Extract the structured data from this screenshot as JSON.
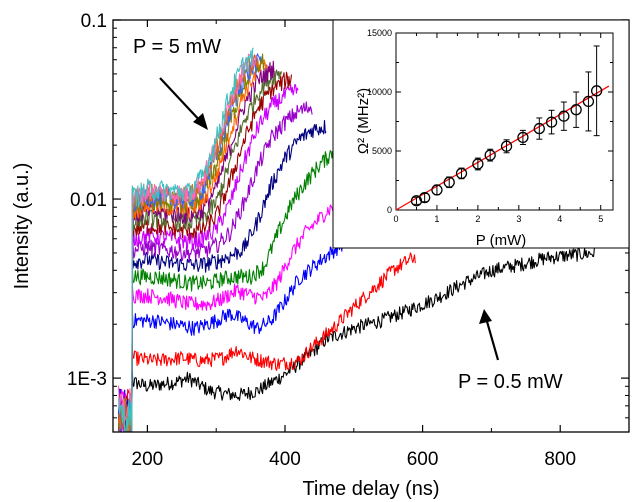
{
  "main_chart": {
    "xlabel": "Time delay (ns)",
    "ylabel": "Intensity (a.u.)",
    "xlim": [
      150,
      900
    ],
    "ylim": [
      0.0005,
      0.1
    ],
    "log_y": true,
    "x_ticks": [
      200,
      400,
      600,
      800
    ],
    "x_tick_labels": [
      "200",
      "400",
      "600",
      "800"
    ],
    "y_ticks": [
      0.001,
      0.01,
      0.1
    ],
    "y_tick_labels": [
      "1E-3",
      "0.01",
      "0.1"
    ],
    "annotation_top": "P = 5 mW",
    "annotation_bottom": "P = 0.5 mW"
  },
  "inset_chart": {
    "xlabel": "P (mW)",
    "ylabel": "Ω² (MHz²)",
    "xlim": [
      0,
      5.3
    ],
    "ylim": [
      0,
      15000
    ],
    "x_ticks": [
      0,
      1,
      2,
      3,
      4,
      5
    ],
    "x_tick_labels": [
      "0",
      "1",
      "2",
      "3",
      "4",
      "5"
    ],
    "y_ticks": [
      0,
      5000,
      10000,
      15000
    ],
    "y_tick_labels": [
      "0",
      "5000",
      "10000",
      "15000"
    ]
  },
  "chart_data": [
    {
      "type": "line",
      "xlabel": "Time delay (ns)",
      "ylabel": "Intensity (a.u.)",
      "log_y": true,
      "xlim": [
        150,
        900
      ],
      "ylim": [
        0.0005,
        0.1
      ],
      "onset_ns": 178,
      "series": [
        {
          "name": "P = 0.5 mW",
          "color": "#000000",
          "x_end": 850,
          "points": [
            [
              180,
              0.00095
            ],
            [
              200,
              0.0009
            ],
            [
              240,
              0.00095
            ],
            [
              260,
              0.001
            ],
            [
              290,
              0.00085
            ],
            [
              330,
              0.0008
            ],
            [
              360,
              0.00085
            ],
            [
              400,
              0.00105
            ],
            [
              430,
              0.0013
            ],
            [
              460,
              0.00165
            ],
            [
              500,
              0.0019
            ],
            [
              540,
              0.0021
            ],
            [
              580,
              0.0024
            ],
            [
              620,
              0.0028
            ],
            [
              660,
              0.0034
            ],
            [
              700,
              0.004
            ],
            [
              740,
              0.0043
            ],
            [
              780,
              0.0047
            ],
            [
              820,
              0.0049
            ],
            [
              850,
              0.005
            ]
          ]
        },
        {
          "name": "",
          "color": "#ff0000",
          "x_end": 590,
          "points": [
            [
              180,
              0.0013
            ],
            [
              210,
              0.00125
            ],
            [
              250,
              0.0013
            ],
            [
              280,
              0.00125
            ],
            [
              310,
              0.0013
            ],
            [
              330,
              0.00145
            ],
            [
              350,
              0.0013
            ],
            [
              390,
              0.0012
            ],
            [
              420,
              0.00125
            ],
            [
              440,
              0.0015
            ],
            [
              470,
              0.0019
            ],
            [
              500,
              0.0025
            ],
            [
              530,
              0.0032
            ],
            [
              560,
              0.0041
            ],
            [
              590,
              0.0048
            ]
          ]
        },
        {
          "name": "",
          "color": "#0000ff",
          "x_end": 510,
          "points": [
            [
              180,
              0.0021
            ],
            [
              210,
              0.0021
            ],
            [
              240,
              0.002
            ],
            [
              270,
              0.0019
            ],
            [
              300,
              0.0021
            ],
            [
              320,
              0.0023
            ],
            [
              340,
              0.0021
            ],
            [
              360,
              0.0019
            ],
            [
              380,
              0.0021
            ],
            [
              400,
              0.0027
            ],
            [
              420,
              0.0036
            ],
            [
              450,
              0.0045
            ],
            [
              480,
              0.0055
            ],
            [
              510,
              0.0065
            ]
          ]
        },
        {
          "name": "",
          "color": "#ff00ff",
          "x_end": 490,
          "points": [
            [
              180,
              0.0029
            ],
            [
              200,
              0.0029
            ],
            [
              230,
              0.0028
            ],
            [
              260,
              0.0026
            ],
            [
              290,
              0.0026
            ],
            [
              310,
              0.0028
            ],
            [
              330,
              0.0031
            ],
            [
              350,
              0.0029
            ],
            [
              370,
              0.0028
            ],
            [
              390,
              0.0035
            ],
            [
              410,
              0.005
            ],
            [
              430,
              0.0065
            ],
            [
              460,
              0.0085
            ],
            [
              490,
              0.0105
            ]
          ]
        },
        {
          "name": "",
          "color": "#008000",
          "x_end": 470,
          "points": [
            [
              180,
              0.0037
            ],
            [
              200,
              0.0037
            ],
            [
              230,
              0.0036
            ],
            [
              260,
              0.0034
            ],
            [
              290,
              0.0034
            ],
            [
              310,
              0.0036
            ],
            [
              330,
              0.0037
            ],
            [
              350,
              0.0037
            ],
            [
              370,
              0.0042
            ],
            [
              390,
              0.0065
            ],
            [
              410,
              0.0095
            ],
            [
              430,
              0.0125
            ],
            [
              450,
              0.0155
            ],
            [
              470,
              0.0185
            ]
          ]
        },
        {
          "name": "",
          "color": "#000080",
          "x_end": 460,
          "points": [
            [
              180,
              0.0045
            ],
            [
              200,
              0.0046
            ],
            [
              230,
              0.0044
            ],
            [
              260,
              0.0043
            ],
            [
              280,
              0.0043
            ],
            [
              300,
              0.0045
            ],
            [
              320,
              0.0048
            ],
            [
              340,
              0.0053
            ],
            [
              360,
              0.0075
            ],
            [
              380,
              0.012
            ],
            [
              400,
              0.017
            ],
            [
              420,
              0.0215
            ],
            [
              440,
              0.0245
            ],
            [
              460,
              0.0255
            ]
          ]
        },
        {
          "name": "",
          "color": "#9900cc",
          "x_end": 440,
          "points": [
            [
              180,
              0.0052
            ],
            [
              200,
              0.0054
            ],
            [
              230,
              0.0052
            ],
            [
              260,
              0.005
            ],
            [
              280,
              0.0051
            ],
            [
              300,
              0.0055
            ],
            [
              320,
              0.0065
            ],
            [
              340,
              0.0095
            ],
            [
              360,
              0.015
            ],
            [
              380,
              0.022
            ],
            [
              400,
              0.027
            ],
            [
              420,
              0.031
            ],
            [
              440,
              0.033
            ]
          ]
        },
        {
          "name": "",
          "color": "#cc00ff",
          "x_end": 420,
          "points": [
            [
              180,
              0.006
            ],
            [
              200,
              0.0063
            ],
            [
              230,
              0.0061
            ],
            [
              260,
              0.0058
            ],
            [
              280,
              0.006
            ],
            [
              300,
              0.0068
            ],
            [
              320,
              0.0095
            ],
            [
              340,
              0.016
            ],
            [
              360,
              0.025
            ],
            [
              380,
              0.033
            ],
            [
              400,
              0.038
            ],
            [
              420,
              0.041
            ]
          ]
        },
        {
          "name": "",
          "color": "#990000",
          "x_end": 410,
          "points": [
            [
              180,
              0.0068
            ],
            [
              200,
              0.0071
            ],
            [
              230,
              0.0069
            ],
            [
              260,
              0.0066
            ],
            [
              280,
              0.0068
            ],
            [
              300,
              0.008
            ],
            [
              320,
              0.0125
            ],
            [
              340,
              0.021
            ],
            [
              360,
              0.032
            ],
            [
              380,
              0.041
            ],
            [
              400,
              0.046
            ],
            [
              410,
              0.047
            ]
          ]
        },
        {
          "name": "",
          "color": "#556b2f",
          "x_end": 395,
          "points": [
            [
              180,
              0.0075
            ],
            [
              200,
              0.0079
            ],
            [
              230,
              0.0077
            ],
            [
              260,
              0.0074
            ],
            [
              280,
              0.0078
            ],
            [
              300,
              0.0095
            ],
            [
              320,
              0.016
            ],
            [
              340,
              0.027
            ],
            [
              360,
              0.039
            ],
            [
              380,
              0.048
            ],
            [
              395,
              0.052
            ]
          ]
        },
        {
          "name": "",
          "color": "#800080",
          "x_end": 385,
          "points": [
            [
              180,
              0.0081
            ],
            [
              200,
              0.0086
            ],
            [
              230,
              0.0084
            ],
            [
              260,
              0.0081
            ],
            [
              280,
              0.0087
            ],
            [
              300,
              0.0115
            ],
            [
              320,
              0.0195
            ],
            [
              340,
              0.033
            ],
            [
              360,
              0.046
            ],
            [
              385,
              0.055
            ]
          ]
        },
        {
          "name": "",
          "color": "#ff6600",
          "x_end": 375,
          "points": [
            [
              180,
              0.0087
            ],
            [
              200,
              0.0093
            ],
            [
              230,
              0.0091
            ],
            [
              260,
              0.0088
            ],
            [
              280,
              0.0097
            ],
            [
              300,
              0.0135
            ],
            [
              320,
              0.0235
            ],
            [
              340,
              0.039
            ],
            [
              360,
              0.052
            ],
            [
              375,
              0.057
            ]
          ]
        },
        {
          "name": "",
          "color": "#808000",
          "x_end": 370,
          "points": [
            [
              180,
              0.0092
            ],
            [
              200,
              0.0099
            ],
            [
              230,
              0.0097
            ],
            [
              260,
              0.0094
            ],
            [
              280,
              0.0106
            ],
            [
              300,
              0.0155
            ],
            [
              320,
              0.027
            ],
            [
              340,
              0.044
            ],
            [
              360,
              0.056
            ],
            [
              370,
              0.059
            ]
          ]
        },
        {
          "name": "",
          "color": "#3366ff",
          "x_end": 365,
          "points": [
            [
              180,
              0.0096
            ],
            [
              200,
              0.0104
            ],
            [
              230,
              0.0102
            ],
            [
              260,
              0.0099
            ],
            [
              280,
              0.0114
            ],
            [
              300,
              0.0172
            ],
            [
              320,
              0.0305
            ],
            [
              340,
              0.048
            ],
            [
              365,
              0.06
            ]
          ]
        },
        {
          "name": "",
          "color": "#d2691e",
          "x_end": 362,
          "points": [
            [
              180,
              0.0099
            ],
            [
              200,
              0.0108
            ],
            [
              230,
              0.0106
            ],
            [
              260,
              0.0103
            ],
            [
              280,
              0.0121
            ],
            [
              300,
              0.0188
            ],
            [
              320,
              0.0335
            ],
            [
              340,
              0.051
            ],
            [
              362,
              0.061
            ]
          ]
        },
        {
          "name": "",
          "color": "#ff69b4",
          "x_end": 358,
          "points": [
            [
              180,
              0.0101
            ],
            [
              200,
              0.0111
            ],
            [
              230,
              0.0109
            ],
            [
              260,
              0.0106
            ],
            [
              280,
              0.0127
            ],
            [
              300,
              0.0202
            ],
            [
              320,
              0.0365
            ],
            [
              340,
              0.054
            ],
            [
              358,
              0.062
            ]
          ]
        },
        {
          "name": "P = 5 mW",
          "color": "#40c0c0",
          "x_end": 355,
          "points": [
            [
              180,
              0.0103
            ],
            [
              200,
              0.0114
            ],
            [
              230,
              0.0112
            ],
            [
              260,
              0.0109
            ],
            [
              280,
              0.0133
            ],
            [
              300,
              0.0215
            ],
            [
              320,
              0.039
            ],
            [
              340,
              0.057
            ],
            [
              355,
              0.063
            ]
          ]
        }
      ]
    },
    {
      "type": "scatter",
      "xlabel": "P (mW)",
      "ylabel": "Ω² (MHz²)",
      "xlim": [
        0,
        5.3
      ],
      "ylim": [
        0,
        15000
      ],
      "points": [
        {
          "x": 0.5,
          "y": 780,
          "err": 300
        },
        {
          "x": 0.7,
          "y": 1050,
          "err": 350
        },
        {
          "x": 1.0,
          "y": 1700,
          "err": 400
        },
        {
          "x": 1.3,
          "y": 2350,
          "err": 450
        },
        {
          "x": 1.6,
          "y": 3100,
          "err": 450
        },
        {
          "x": 2.0,
          "y": 3900,
          "err": 500
        },
        {
          "x": 2.3,
          "y": 4650,
          "err": 500
        },
        {
          "x": 2.7,
          "y": 5400,
          "err": 550
        },
        {
          "x": 3.1,
          "y": 6150,
          "err": 600
        },
        {
          "x": 3.5,
          "y": 6900,
          "err": 900
        },
        {
          "x": 3.8,
          "y": 7450,
          "err": 1000
        },
        {
          "x": 4.1,
          "y": 7950,
          "err": 1200
        },
        {
          "x": 4.4,
          "y": 8500,
          "err": 1500
        },
        {
          "x": 4.7,
          "y": 9200,
          "err": 2500
        },
        {
          "x": 4.9,
          "y": 10100,
          "err": 3800
        }
      ],
      "fit": {
        "color": "#ff0000",
        "x": [
          0,
          5.2
        ],
        "y": [
          0,
          10500
        ]
      }
    }
  ]
}
